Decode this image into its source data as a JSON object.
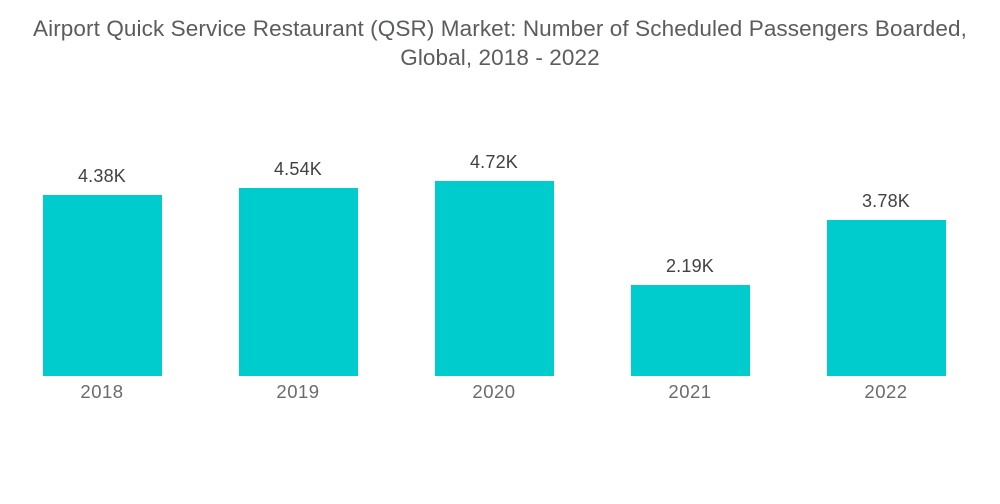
{
  "title": {
    "line1": "Airport Quick Service Restaurant (QSR) Market: Number of Scheduled Passengers Boarded,",
    "line2": "Global, 2018 - 2022"
  },
  "colors": {
    "bar": "#00CCCE",
    "title_text": "#5b5c5e",
    "value_label_text": "#414143",
    "axis_label_text": "#6b6b6b",
    "background": "#ffffff"
  },
  "chart_data": {
    "type": "bar",
    "title": "Airport Quick Service Restaurant (QSR) Market: Number of Scheduled Passengers Boarded, Global, 2018 - 2022",
    "categories": [
      "2018",
      "2019",
      "2020",
      "2021",
      "2022"
    ],
    "values": [
      4.38,
      4.54,
      4.72,
      2.19,
      3.78
    ],
    "value_labels": [
      "4.38K",
      "4.54K",
      "4.72K",
      "2.19K",
      "3.78K"
    ],
    "unit": "K",
    "xlabel": "",
    "ylabel": "",
    "ylim": [
      0,
      5
    ],
    "grid": false,
    "legend": "none",
    "axes_drawn": false,
    "value_labels_position": "above-bars"
  }
}
